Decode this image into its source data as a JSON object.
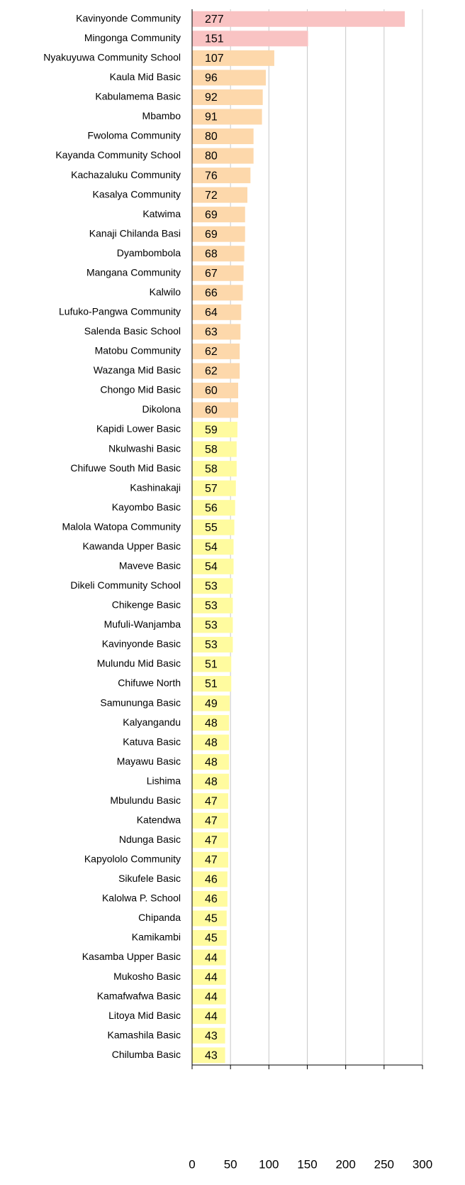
{
  "chart_data": {
    "type": "barh",
    "categories": [
      "Kavinyonde Community",
      "Mingonga Community",
      "Nyakuyuwa Community School",
      "Kaula Mid Basic",
      "Kabulamema Basic",
      "Mbambo",
      "Fwoloma Community",
      "Kayanda Community School",
      "Kachazaluku Community",
      "Kasalya Community",
      "Katwima",
      "Kanaji Chilanda Basi",
      "Dyambombola",
      "Mangana Community",
      "Kalwilo",
      "Lufuko-Pangwa Community",
      "Salenda Basic School",
      "Matobu Community",
      "Wazanga Mid Basic",
      "Chongo Mid Basic",
      "Dikolona",
      "Kapidi Lower Basic",
      "Nkulwashi Basic",
      "Chifuwe South Mid Basic",
      "Kashinakaji",
      "Kayombo Basic",
      "Malola Watopa Community",
      "Kawanda Upper Basic",
      "Maveve  Basic",
      "Dikeli Community School",
      "Chikenge Basic",
      "Mufuli-Wanjamba",
      "Kavinyonde  Basic",
      "Mulundu Mid Basic",
      "Chifuwe North",
      "Samununga Basic",
      "Kalyangandu",
      "Katuva Basic",
      "Mayawu  Basic",
      "Lishima",
      "Mbulundu Basic",
      "Katendwa",
      "Ndunga Basic",
      "Kapyololo Community",
      "Sikufele  Basic",
      "Kalolwa P. School",
      "Chipanda",
      "Kamikambi",
      "Kasamba Upper Basic",
      "Mukosho Basic",
      "Kamafwafwa Basic",
      "Litoya Mid Basic",
      "Kamashila Basic",
      "Chilumba Basic"
    ],
    "values": [
      277,
      151,
      107,
      96,
      92,
      91,
      80,
      80,
      76,
      72,
      69,
      69,
      68,
      67,
      66,
      64,
      63,
      62,
      62,
      60,
      60,
      59,
      58,
      58,
      57,
      56,
      55,
      54,
      54,
      53,
      53,
      53,
      53,
      51,
      51,
      49,
      48,
      48,
      48,
      48,
      47,
      47,
      47,
      47,
      46,
      46,
      45,
      45,
      44,
      44,
      44,
      44,
      43,
      43
    ],
    "colors": [
      "#f9c3c3",
      "#f9c3c3",
      "#fdd8ab",
      "#fdd8ab",
      "#fdd8ab",
      "#fdd8ab",
      "#fdd8ab",
      "#fdd8ab",
      "#fdd8ab",
      "#fdd8ab",
      "#fdd8ab",
      "#fdd8ab",
      "#fdd8ab",
      "#fdd8ab",
      "#fdd8ab",
      "#fdd8ab",
      "#fdd8ab",
      "#fdd8ab",
      "#fdd8ab",
      "#fdd8ab",
      "#fdd8ab",
      "#fffb9f",
      "#fffb9f",
      "#fffb9f",
      "#fffb9f",
      "#fffb9f",
      "#fffb9f",
      "#fffb9f",
      "#fffb9f",
      "#fffb9f",
      "#fffb9f",
      "#fffb9f",
      "#fffb9f",
      "#fffb9f",
      "#fffb9f",
      "#fffb9f",
      "#fffb9f",
      "#fffb9f",
      "#fffb9f",
      "#fffb9f",
      "#fffb9f",
      "#fffb9f",
      "#fffb9f",
      "#fffb9f",
      "#fffb9f",
      "#fffb9f",
      "#fffb9f",
      "#fffb9f",
      "#fffb9f",
      "#fffb9f",
      "#fffb9f",
      "#fffb9f",
      "#fffb9f",
      "#fffb9f"
    ],
    "xlim": [
      0,
      300
    ],
    "xticks": [
      0,
      50,
      100,
      150,
      200,
      250,
      300
    ],
    "grid": true
  }
}
